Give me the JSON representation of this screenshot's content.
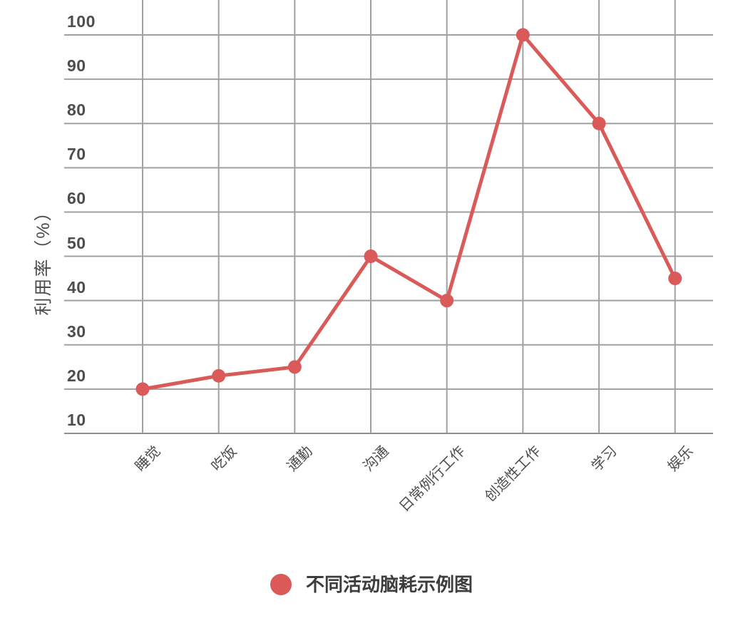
{
  "chart_data": {
    "type": "line",
    "title": "",
    "xlabel": "",
    "ylabel": "利用率（%）",
    "categories": [
      "睡觉",
      "吃饭",
      "通勤",
      "沟通",
      "日常例行工作",
      "创造性工作",
      "学习",
      "娱乐"
    ],
    "series": [
      {
        "name": "不同活动脑耗示例图",
        "values": [
          20,
          23,
          25,
          50,
          40,
          100,
          80,
          45
        ]
      }
    ],
    "yticks": [
      10,
      20,
      30,
      40,
      50,
      60,
      70,
      80,
      90,
      100
    ],
    "ylim": [
      10,
      100
    ],
    "grid": true,
    "legend_position": "bottom",
    "marker": "circle",
    "colors": {
      "line": "#d95a58",
      "grid": "#a0a0a0",
      "axis": "#8f8f8f",
      "axis_text": "#4d4d4d",
      "legend_text": "#3d3d3d",
      "background": "#ffffff"
    }
  }
}
